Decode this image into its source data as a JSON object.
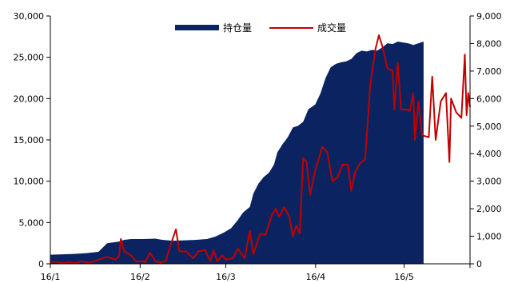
{
  "chart_data": {
    "type": "area",
    "title": "",
    "x_tick_labels": [
      "16/1",
      "16/2",
      "16/3",
      "16/4",
      "16/5"
    ],
    "y_left": {
      "ylim": [
        0,
        30000
      ],
      "ticks": [
        0,
        5000,
        10000,
        15000,
        20000,
        25000,
        30000
      ],
      "tick_labels": [
        "0",
        "5,000",
        "10,000",
        "15,000",
        "20,000",
        "25,000",
        "30,000"
      ]
    },
    "y_right": {
      "ylim": [
        0,
        9000
      ],
      "ticks": [
        0,
        1000,
        2000,
        3000,
        4000,
        5000,
        6000,
        7000,
        8000,
        9000
      ],
      "tick_labels": [
        "0",
        "1,000",
        "2,000",
        "3,000",
        "4,000",
        "5,000",
        "6,000",
        "7,000",
        "8,000",
        "9,000"
      ]
    },
    "legend_position": "top-center",
    "grid": false,
    "series": [
      {
        "name": "持仓量",
        "kind": "area",
        "axis": "left",
        "color": "#0b2461",
        "points": [
          [
            "2016-01-01",
            1100
          ],
          [
            "2016-01-08",
            1150
          ],
          [
            "2016-01-15",
            1200
          ],
          [
            "2016-01-22",
            1300
          ],
          [
            "2016-01-29",
            1450
          ],
          [
            "2016-02-03",
            2500
          ],
          [
            "2016-02-10",
            2700
          ],
          [
            "2016-02-13",
            2900
          ],
          [
            "2016-02-17",
            3000
          ],
          [
            "2016-02-24",
            3000
          ],
          [
            "2016-03-02",
            3050
          ],
          [
            "2016-03-06",
            2900
          ],
          [
            "2016-03-12",
            2800
          ],
          [
            "2016-03-19",
            2850
          ],
          [
            "2016-03-26",
            2900
          ],
          [
            "2016-04-01",
            3000
          ],
          [
            "2016-04-06",
            3300
          ],
          [
            "2016-04-11",
            3800
          ],
          [
            "2016-04-15",
            4300
          ],
          [
            "2016-04-19",
            5300
          ],
          [
            "2016-04-22",
            6200
          ],
          [
            "2016-04-26",
            6900
          ],
          [
            "2016-04-28",
            8500
          ],
          [
            "2016-05-01",
            9700
          ],
          [
            "2016-05-04",
            10500
          ],
          [
            "2016-05-07",
            11000
          ],
          [
            "2016-05-10",
            12000
          ],
          [
            "2016-05-12",
            13500
          ],
          [
            "2016-05-15",
            14500
          ],
          [
            "2016-05-18",
            15300
          ],
          [
            "2016-05-21",
            16500
          ],
          [
            "2016-05-24",
            16700
          ],
          [
            "2016-05-27",
            17200
          ],
          [
            "2016-05-30",
            18700
          ],
          [
            "2016-06-03",
            19300
          ],
          [
            "2016-06-06",
            20600
          ],
          [
            "2016-06-09",
            22500
          ],
          [
            "2016-06-12",
            23800
          ],
          [
            "2016-06-15",
            24200
          ],
          [
            "2016-06-18",
            24400
          ],
          [
            "2016-06-21",
            24500
          ],
          [
            "2016-06-24",
            24800
          ],
          [
            "2016-06-27",
            25500
          ],
          [
            "2016-06-30",
            25800
          ],
          [
            "2016-07-03",
            25700
          ],
          [
            "2016-07-06",
            25900
          ],
          [
            "2016-07-09",
            25800
          ],
          [
            "2016-07-12",
            26200
          ],
          [
            "2016-07-15",
            26700
          ],
          [
            "2016-07-18",
            26600
          ],
          [
            "2016-07-21",
            26900
          ],
          [
            "2016-07-24",
            26800
          ],
          [
            "2016-07-27",
            26700
          ],
          [
            "2016-07-30",
            26500
          ],
          [
            "2016-08-02",
            26700
          ],
          [
            "2016-08-05",
            26900
          ]
        ]
      },
      {
        "name": "成交量",
        "kind": "line",
        "axis": "right",
        "color": "#c00000",
        "points": [
          [
            "2016-01-01",
            50
          ],
          [
            "2016-01-04",
            80
          ],
          [
            "2016-01-08",
            30
          ],
          [
            "2016-01-12",
            60
          ],
          [
            "2016-01-15",
            20
          ],
          [
            "2016-01-19",
            90
          ],
          [
            "2016-01-24",
            40
          ],
          [
            "2016-01-29",
            150
          ],
          [
            "2016-02-03",
            250
          ],
          [
            "2016-02-08",
            150
          ],
          [
            "2016-02-10",
            300
          ],
          [
            "2016-02-11",
            900
          ],
          [
            "2016-02-13",
            450
          ],
          [
            "2016-02-17",
            300
          ],
          [
            "2016-02-20",
            80
          ],
          [
            "2016-02-24",
            100
          ],
          [
            "2016-02-25",
            50
          ],
          [
            "2016-02-28",
            400
          ],
          [
            "2016-03-02",
            100
          ],
          [
            "2016-03-05",
            50
          ],
          [
            "2016-03-08",
            100
          ],
          [
            "2016-03-11",
            700
          ],
          [
            "2016-03-14",
            1250
          ],
          [
            "2016-03-16",
            450
          ],
          [
            "2016-03-20",
            450
          ],
          [
            "2016-03-24",
            200
          ],
          [
            "2016-03-27",
            450
          ],
          [
            "2016-03-31",
            500
          ],
          [
            "2016-04-03",
            100
          ],
          [
            "2016-04-05",
            500
          ],
          [
            "2016-04-07",
            100
          ],
          [
            "2016-04-10",
            300
          ],
          [
            "2016-04-12",
            150
          ],
          [
            "2016-04-16",
            200
          ],
          [
            "2016-04-19",
            550
          ],
          [
            "2016-04-23",
            200
          ],
          [
            "2016-04-26",
            1200
          ],
          [
            "2016-04-28",
            350
          ],
          [
            "2016-05-02",
            1100
          ],
          [
            "2016-05-05",
            1050
          ],
          [
            "2016-05-09",
            1800
          ],
          [
            "2016-05-11",
            2000
          ],
          [
            "2016-05-13",
            1700
          ],
          [
            "2016-05-16",
            2050
          ],
          [
            "2016-05-19",
            1700
          ],
          [
            "2016-05-21",
            1000
          ],
          [
            "2016-05-23",
            1400
          ],
          [
            "2016-05-25",
            1100
          ],
          [
            "2016-05-27",
            3850
          ],
          [
            "2016-05-29",
            3700
          ],
          [
            "2016-05-31",
            2500
          ],
          [
            "2016-06-03",
            3400
          ],
          [
            "2016-06-05",
            3800
          ],
          [
            "2016-06-07",
            4250
          ],
          [
            "2016-06-10",
            4050
          ],
          [
            "2016-06-13",
            3000
          ],
          [
            "2016-06-16",
            3150
          ],
          [
            "2016-06-19",
            3600
          ],
          [
            "2016-06-22",
            3600
          ],
          [
            "2016-06-24",
            2650
          ],
          [
            "2016-06-26",
            3300
          ],
          [
            "2016-06-29",
            3650
          ],
          [
            "2016-07-02",
            3800
          ],
          [
            "2016-07-05",
            6500
          ],
          [
            "2016-07-08",
            7800
          ],
          [
            "2016-07-10",
            8300
          ],
          [
            "2016-07-12",
            7900
          ],
          [
            "2016-07-15",
            7100
          ],
          [
            "2016-07-18",
            7000
          ],
          [
            "2016-07-19",
            5600
          ],
          [
            "2016-07-21",
            7300
          ],
          [
            "2016-07-23",
            5600
          ],
          [
            "2016-07-26",
            5600
          ],
          [
            "2016-07-28",
            5550
          ],
          [
            "2016-07-30",
            6200
          ],
          [
            "2016-07-31",
            4500
          ],
          [
            "2016-08-02",
            5900
          ],
          [
            "2016-08-04",
            4700
          ],
          [
            "2016-08-05",
            4650
          ],
          [
            "2016-08-08",
            4600
          ],
          [
            "2016-08-10",
            6800
          ],
          [
            "2016-08-12",
            4500
          ],
          [
            "2016-08-15",
            5900
          ],
          [
            "2016-08-18",
            6200
          ],
          [
            "2016-08-20",
            3700
          ],
          [
            "2016-08-21",
            6000
          ],
          [
            "2016-08-24",
            5500
          ],
          [
            "2016-08-27",
            5300
          ],
          [
            "2016-08-29",
            7600
          ],
          [
            "2016-08-30",
            5400
          ],
          [
            "2016-08-31",
            6200
          ],
          [
            "2016-09-01",
            5700
          ]
        ]
      }
    ]
  }
}
